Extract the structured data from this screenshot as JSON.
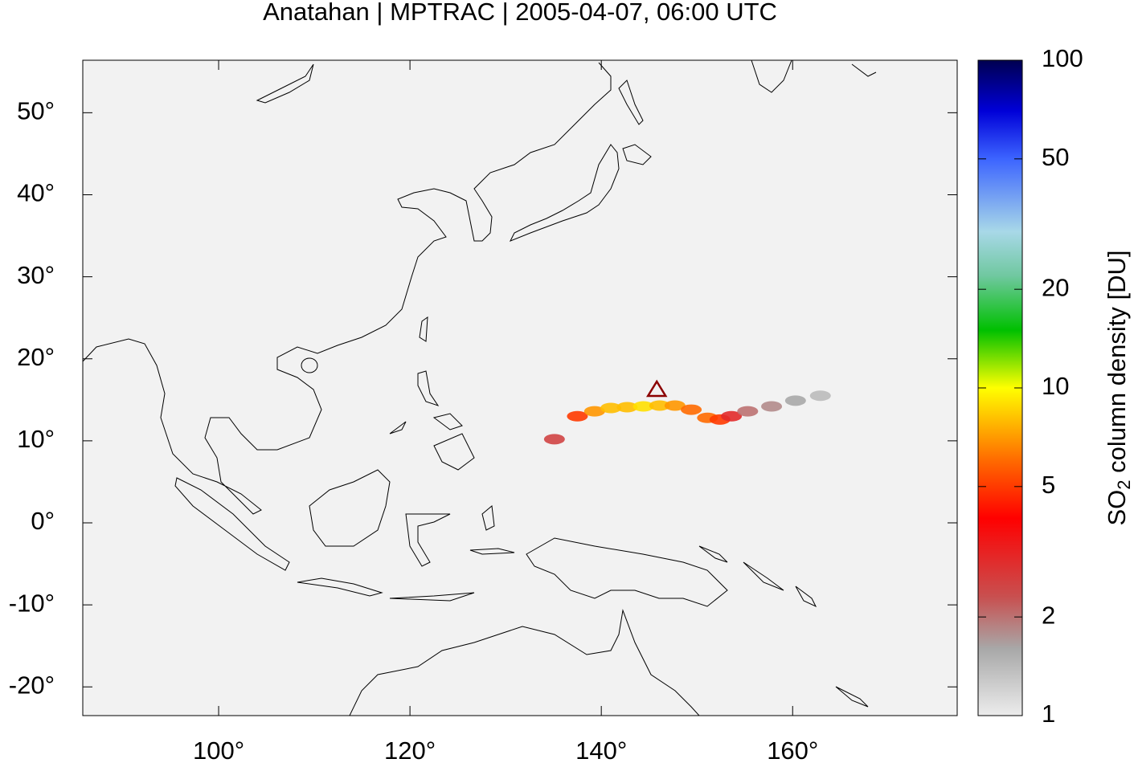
{
  "chart_data": {
    "type": "map",
    "title": "Anatahan | MPTRAC | 2005-04-07, 06:00 UTC",
    "xlim": [
      85.8,
      177.2
    ],
    "ylim": [
      -23.5,
      56.4
    ],
    "xticks": [
      {
        "value": 100,
        "label": "100°"
      },
      {
        "value": 120,
        "label": "120°"
      },
      {
        "value": 140,
        "label": "140°"
      },
      {
        "value": 160,
        "label": "160°"
      }
    ],
    "yticks": [
      {
        "value": -20,
        "label": "-20°"
      },
      {
        "value": -10,
        "label": "-10°"
      },
      {
        "value": 0,
        "label": "0°"
      },
      {
        "value": 10,
        "label": "10°"
      },
      {
        "value": 20,
        "label": "20°"
      },
      {
        "value": 30,
        "label": "30°"
      },
      {
        "value": 40,
        "label": "40°"
      },
      {
        "value": 50,
        "label": "50°"
      }
    ],
    "volcano": {
      "lon": 145.8,
      "lat": 16.35,
      "color": "#8b0000"
    },
    "plume": {
      "lon": [
        135.1,
        137.5,
        139.3,
        141.0,
        142.7,
        144.4,
        146.1,
        147.7,
        149.4,
        151.1,
        152.4,
        153.6,
        155.3,
        157.8,
        160.3,
        162.9
      ],
      "lat": [
        10.2,
        13.0,
        13.6,
        14.0,
        14.1,
        14.2,
        14.3,
        14.3,
        13.8,
        12.8,
        12.6,
        13.0,
        13.6,
        14.2,
        14.9,
        15.5
      ],
      "values": [
        2.5,
        5,
        7,
        8,
        8,
        9,
        8,
        7,
        6,
        6,
        5,
        3,
        2,
        1.8,
        1.6,
        1.4
      ]
    },
    "colorbar": {
      "label": [
        "SO",
        "2",
        " column density [DU]"
      ],
      "lim": [
        1,
        100
      ],
      "log": true,
      "ticks": [
        1,
        2,
        5,
        10,
        20,
        50,
        100
      ],
      "colormap": [
        {
          "value": 1,
          "color": "#ececec"
        },
        {
          "value": 1.6,
          "color": "#a8a8a8"
        },
        {
          "value": 2.3,
          "color": "#c85050"
        },
        {
          "value": 4,
          "color": "#ff0000"
        },
        {
          "value": 6,
          "color": "#ff6a00"
        },
        {
          "value": 10,
          "color": "#ffff00"
        },
        {
          "value": 15,
          "color": "#00c000"
        },
        {
          "value": 22,
          "color": "#70c8a0"
        },
        {
          "value": 30,
          "color": "#a8d8e8"
        },
        {
          "value": 50,
          "color": "#3c64ff"
        },
        {
          "value": 70,
          "color": "#0000d8"
        },
        {
          "value": 100,
          "color": "#000050"
        }
      ]
    }
  }
}
